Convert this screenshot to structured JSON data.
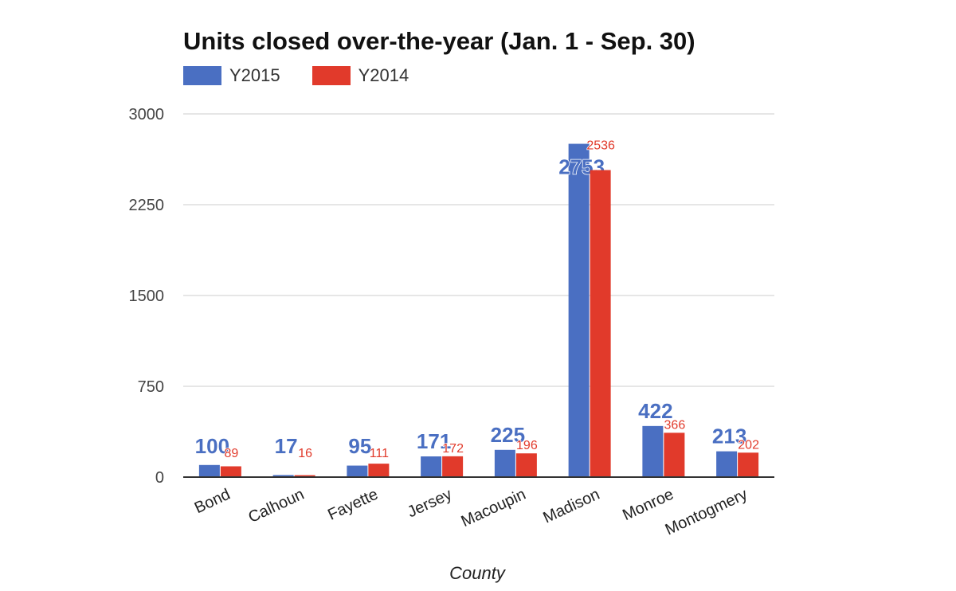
{
  "chart_data": {
    "type": "bar",
    "title": "Units closed over-the-year (Jan. 1 - Sep. 30)",
    "xlabel": "County",
    "ylabel": "",
    "categories": [
      "Bond",
      "Calhoun",
      "Fayette",
      "Jersey",
      "Macoupin",
      "Madison",
      "Monroe",
      "Montogmery"
    ],
    "series": [
      {
        "name": "Y2015",
        "color": "#4a6fc2",
        "values": [
          100,
          17,
          95,
          171,
          225,
          2753,
          422,
          213
        ]
      },
      {
        "name": "Y2014",
        "color": "#e13a2b",
        "values": [
          89,
          16,
          111,
          172,
          196,
          2536,
          366,
          202
        ]
      }
    ],
    "ylim": [
      0,
      3000
    ],
    "yticks": [
      0,
      750,
      1500,
      2250,
      3000
    ],
    "grid": true,
    "legend_position": "top-left"
  }
}
